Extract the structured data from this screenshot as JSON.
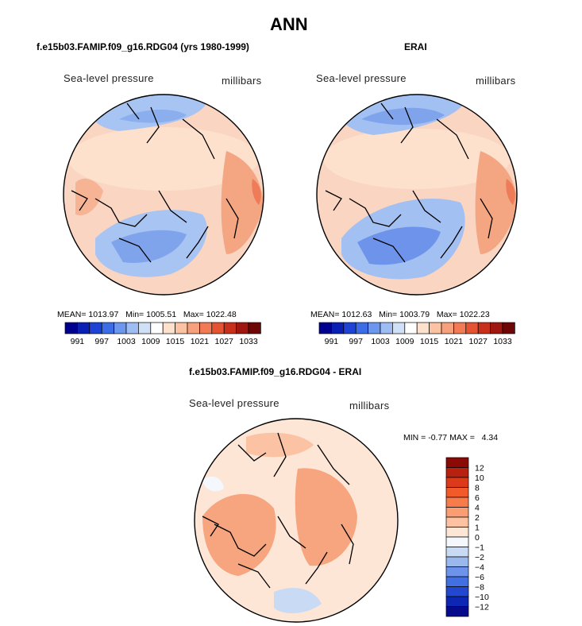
{
  "chart_data": [
    {
      "type": "polar-contour-map",
      "title": "f.e15b03.FAMIP.f09_g16.RDG04 (yrs 1980-1999)",
      "field": "Sea-level pressure",
      "units": "millibars",
      "stats": {
        "mean_label": "MEAN=",
        "mean": "1013.97",
        "min_label": "Min=",
        "min": "1005.51",
        "max_label": "Max=",
        "max": "1022.48"
      },
      "colorbar_ticks": [
        "991",
        "997",
        "1003",
        "1009",
        "1015",
        "1021",
        "1027",
        "1033"
      ],
      "colorbar_colors": [
        "#00008f",
        "#0a1fb4",
        "#1d44d4",
        "#3b6ee6",
        "#6b97ee",
        "#9ebdf2",
        "#cfe0f7",
        "#ffffff",
        "#fde1cd",
        "#fbc2a4",
        "#f7a07c",
        "#f27a55",
        "#e45432",
        "#c8301c",
        "#a01710",
        "#6f0606"
      ]
    },
    {
      "type": "polar-contour-map",
      "title": "ERAI",
      "field": "Sea-level pressure",
      "units": "millibars",
      "stats": {
        "mean_label": "MEAN=",
        "mean": "1012.63",
        "min_label": "Min=",
        "min": "1003.79",
        "max_label": "Max=",
        "max": "1022.23"
      },
      "colorbar_ticks": [
        "991",
        "997",
        "1003",
        "1009",
        "1015",
        "1021",
        "1027",
        "1033"
      ],
      "colorbar_colors": [
        "#00008f",
        "#0a1fb4",
        "#1d44d4",
        "#3b6ee6",
        "#6b97ee",
        "#9ebdf2",
        "#cfe0f7",
        "#ffffff",
        "#fde1cd",
        "#fbc2a4",
        "#f7a07c",
        "#f27a55",
        "#e45432",
        "#c8301c",
        "#a01710",
        "#6f0606"
      ]
    },
    {
      "type": "polar-contour-map",
      "title": "f.e15b03.FAMIP.f09_g16.RDG04 - ERAI",
      "field": "Sea-level pressure",
      "units": "millibars",
      "stats": {
        "min_label": "MIN =",
        "min": "-0.77",
        "max_label": "MAX =",
        "max": "4.34"
      },
      "colorbar_ticks": [
        "12",
        "10",
        "8",
        "6",
        "4",
        "2",
        "1",
        "0",
        "−1",
        "−2",
        "−4",
        "−6",
        "−8",
        "−10",
        "−12"
      ],
      "colorbar_colors": [
        "#8c0a06",
        "#b8200f",
        "#dc3a1a",
        "#f25a2a",
        "#f77c4a",
        "#fb9d72",
        "#fdc2a2",
        "#fde6d6",
        "#f4f8fd",
        "#c9dbf4",
        "#9ab8ee",
        "#6d93ea",
        "#4270e2",
        "#2248d2",
        "#0d26b4",
        "#050b8a"
      ]
    }
  ],
  "page": {
    "main_title": "ANN"
  }
}
